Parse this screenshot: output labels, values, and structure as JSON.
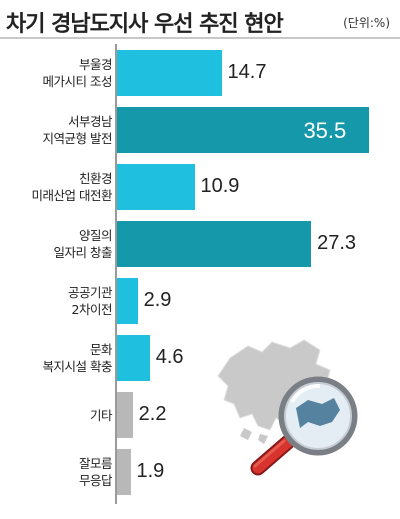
{
  "title": "차기 경남도지사 우선 추진 현안",
  "unit": "(단위:%)",
  "colors": {
    "normal": "#1fbfe0",
    "highlight": "#1599aa",
    "other": "#b8b8b8"
  },
  "chart_data": {
    "type": "bar",
    "orientation": "horizontal",
    "categories": [
      "부울경\n메가시티 조성",
      "서부경남\n지역균형 발전",
      "친환경\n미래산업 대전환",
      "양질의\n일자리 창출",
      "공공기관\n2차이전",
      "문화\n복지시설 확충",
      "기타",
      "잘모름\n무응답"
    ],
    "values": [
      14.7,
      35.5,
      10.9,
      27.3,
      2.9,
      4.6,
      2.2,
      1.9
    ],
    "value_labels": [
      "14.7",
      "35.5",
      "10.9",
      "27.3",
      "2.9",
      "4.6",
      "2.2",
      "1.9"
    ],
    "bar_styles": [
      "normal",
      "highlight",
      "normal",
      "highlight",
      "normal",
      "normal",
      "other",
      "other"
    ],
    "xlim": [
      0,
      36
    ]
  }
}
